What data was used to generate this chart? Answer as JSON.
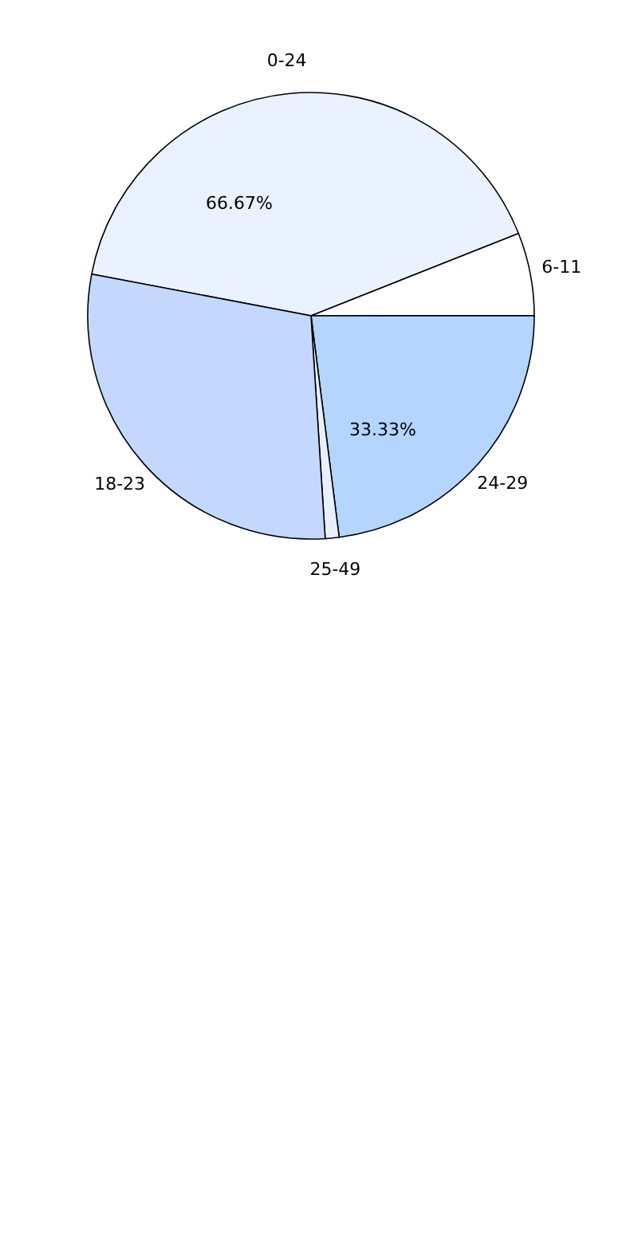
{
  "chart_data": {
    "type": "pie",
    "categories": [
      "0-24",
      "6-11",
      "24-29",
      "25-49",
      "18-23"
    ],
    "values": [
      41,
      6,
      23,
      1,
      29
    ],
    "colors": [
      "#eaf2ff",
      "#ffffff",
      "#b3d5ff",
      "#e8f0ff",
      "#c4d8ff"
    ],
    "annotations": [
      "66.67%",
      "33.33%"
    ]
  }
}
